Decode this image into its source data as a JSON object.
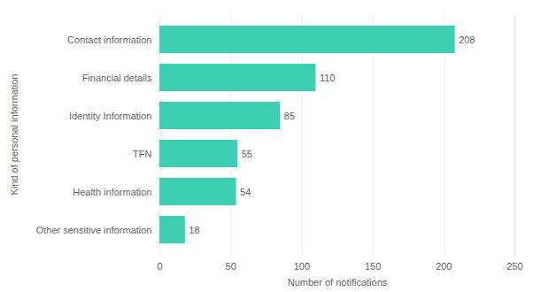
{
  "chart_data": {
    "type": "bar",
    "orientation": "horizontal",
    "categories": [
      "Contact information",
      "Financial details",
      "Identity Information",
      "TFN",
      "Health information",
      "Other sensitive information"
    ],
    "values": [
      208,
      110,
      85,
      55,
      54,
      18
    ],
    "color": "#3ecfb2",
    "xlabel": "Number of notifications",
    "ylabel": "Kind of personal information",
    "xlim": [
      0,
      250
    ],
    "xticks": [
      0,
      50,
      100,
      150,
      200,
      250
    ],
    "grid": true,
    "data_labels": true
  }
}
